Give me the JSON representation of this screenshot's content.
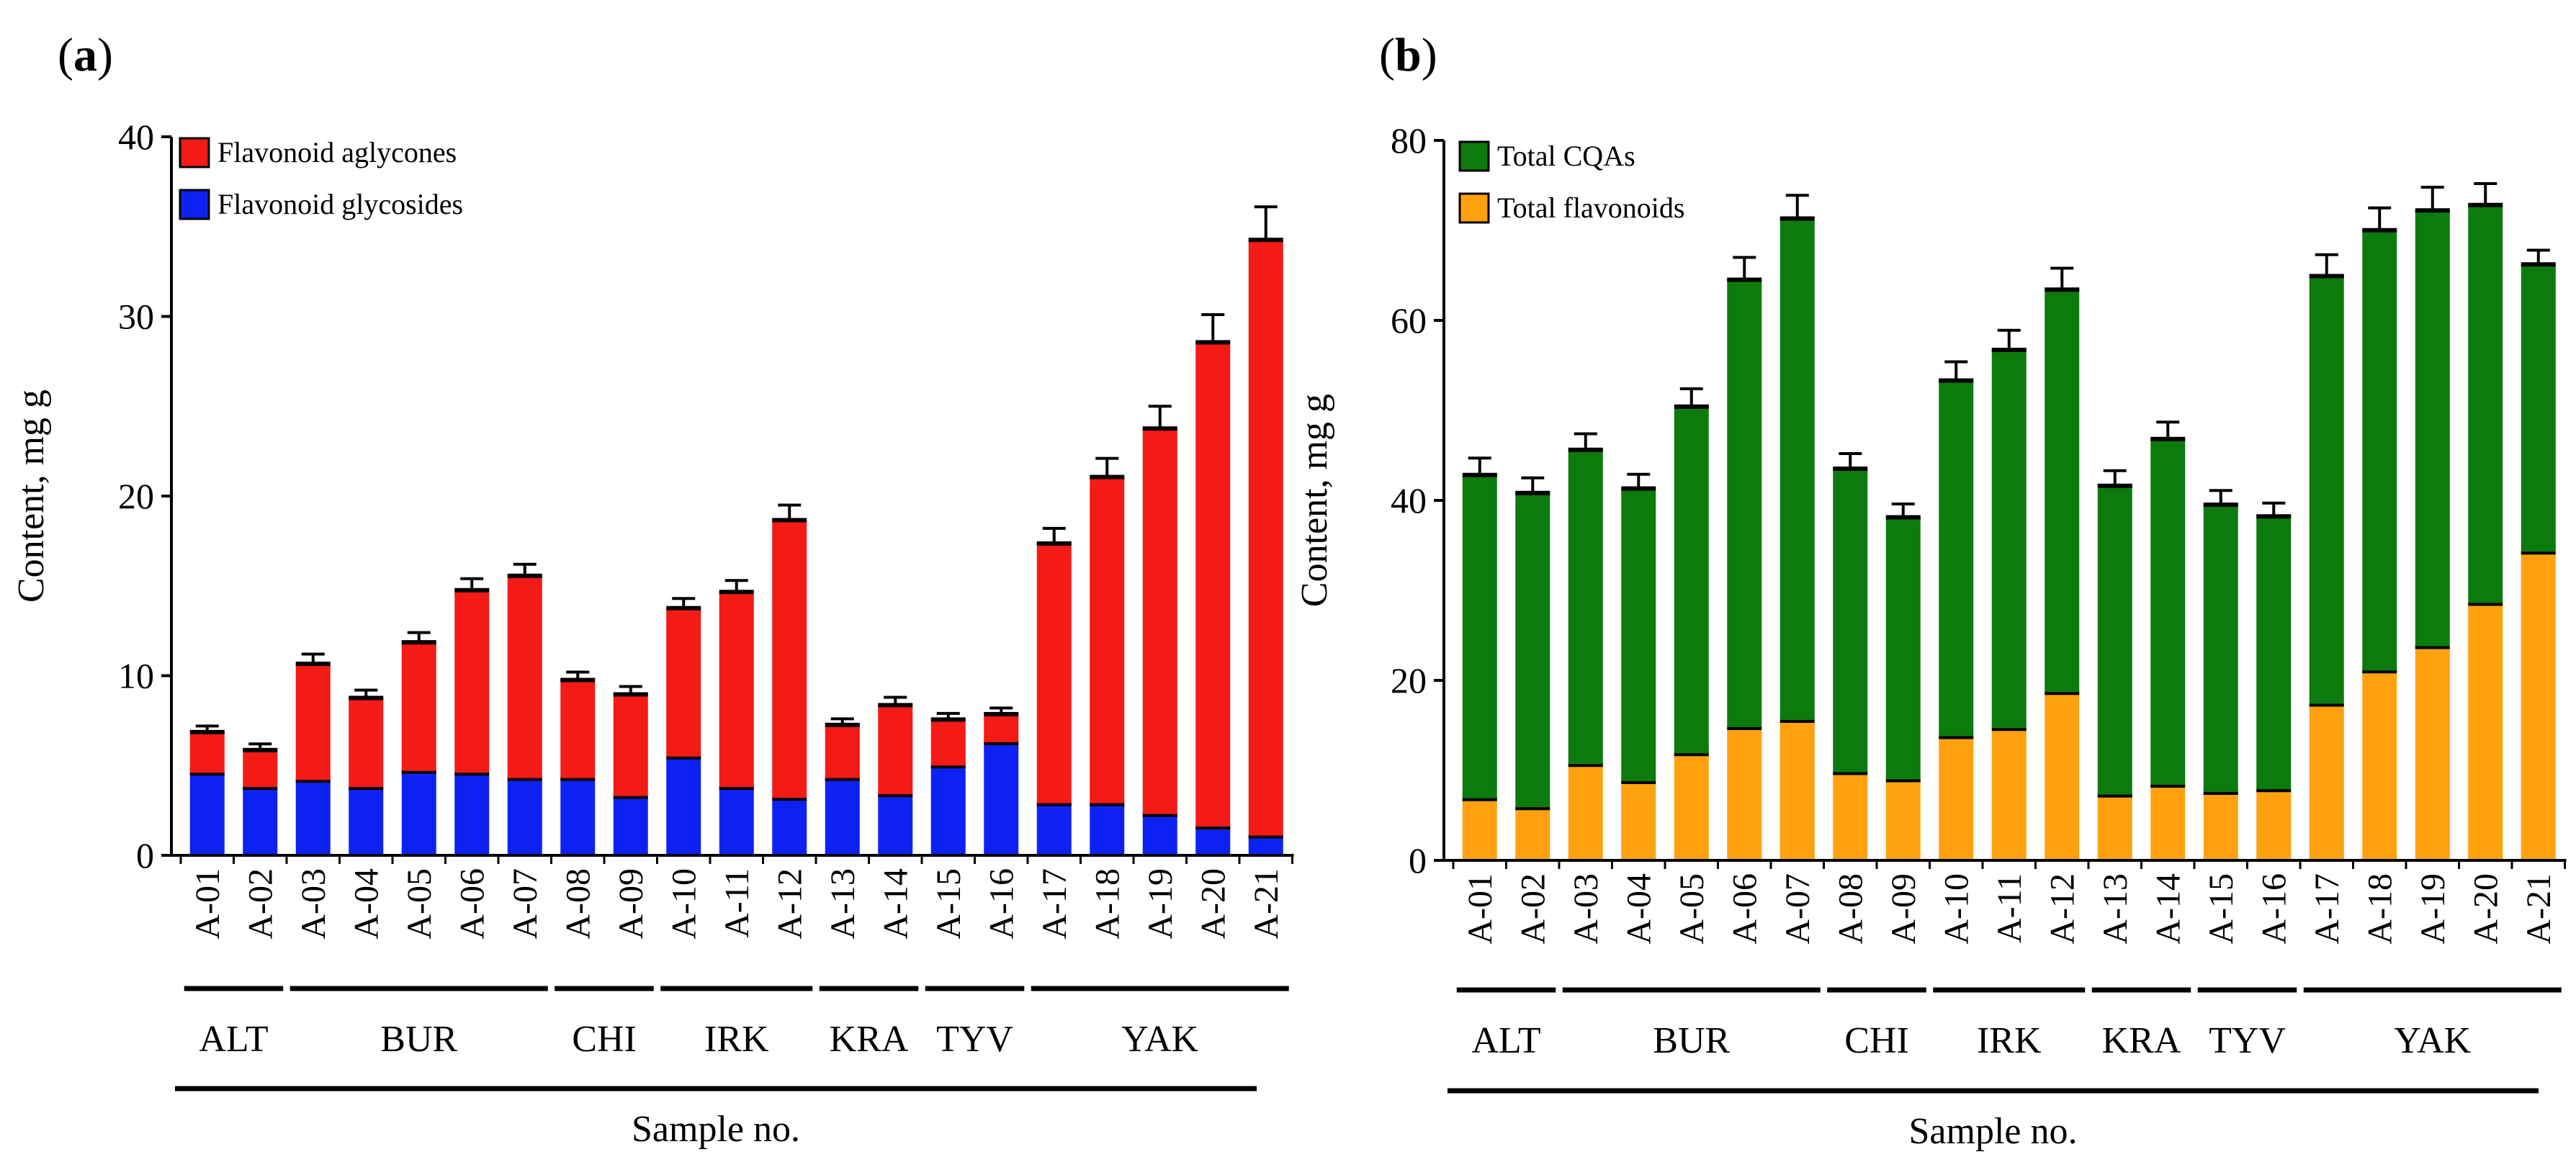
{
  "chart_data": [
    {
      "type": "bar",
      "stacked": true,
      "panel": "(a)",
      "panel_open": "(",
      "panel_letter": "a",
      "panel_close": ")",
      "title": "",
      "categories": [
        "A-01",
        "A-02",
        "A-03",
        "A-04",
        "A-05",
        "A-06",
        "A-07",
        "A-08",
        "A-09",
        "A-10",
        "A-11",
        "A-12",
        "A-13",
        "A-14",
        "A-15",
        "A-16",
        "A-17",
        "A-18",
        "A-19",
        "A-20",
        "A-21"
      ],
      "series": [
        {
          "name": "Flavonoid glycosides",
          "color": "#0d22f2",
          "values": [
            4.6,
            3.8,
            4.2,
            3.8,
            4.7,
            4.6,
            4.3,
            4.3,
            3.3,
            5.5,
            3.8,
            3.2,
            4.3,
            3.4,
            5.0,
            6.3,
            2.9,
            2.9,
            2.3,
            1.6,
            1.1
          ]
        },
        {
          "name": "Flavonoid aglycones",
          "color": "#f41a16",
          "values": [
            2.3,
            2.1,
            6.5,
            5.0,
            7.2,
            10.2,
            11.3,
            5.5,
            5.7,
            8.3,
            10.9,
            15.5,
            3.0,
            5.0,
            2.6,
            1.6,
            14.5,
            18.2,
            21.5,
            27.0,
            33.2
          ]
        }
      ],
      "errors": [
        0.3,
        0.3,
        0.5,
        0.4,
        0.5,
        0.6,
        0.6,
        0.4,
        0.4,
        0.5,
        0.6,
        0.8,
        0.3,
        0.4,
        0.3,
        0.3,
        0.8,
        1.0,
        1.2,
        1.5,
        1.8
      ],
      "legend_order": [
        "Flavonoid aglycones",
        "Flavonoid glycosides"
      ],
      "legend_position": "top-left",
      "xlabel": "Sample no.",
      "ylabel": "Content, mg g",
      "ylim": [
        0,
        40
      ],
      "yticks": [
        "0",
        "10",
        "20",
        "30",
        "40"
      ],
      "grid": false,
      "groups": [
        {
          "label": "ALT",
          "from": 0,
          "to": 1
        },
        {
          "label": "BUR",
          "from": 2,
          "to": 6
        },
        {
          "label": "CHI",
          "from": 7,
          "to": 8
        },
        {
          "label": "IRK",
          "from": 9,
          "to": 11
        },
        {
          "label": "KRA",
          "from": 12,
          "to": 13
        },
        {
          "label": "TYV",
          "from": 14,
          "to": 15
        },
        {
          "label": "YAK",
          "from": 16,
          "to": 20
        }
      ]
    },
    {
      "type": "bar",
      "stacked": true,
      "panel": "(b)",
      "panel_open": "(",
      "panel_letter": "b",
      "panel_close": ")",
      "title": "",
      "categories": [
        "A-01",
        "A-02",
        "A-03",
        "A-04",
        "A-05",
        "A-06",
        "A-07",
        "A-08",
        "A-09",
        "A-10",
        "A-11",
        "A-12",
        "A-13",
        "A-14",
        "A-15",
        "A-16",
        "A-17",
        "A-18",
        "A-19",
        "A-20",
        "A-21"
      ],
      "series": [
        {
          "name": "Total flavonoids",
          "color": "#ffa10f",
          "values": [
            6.9,
            5.9,
            10.7,
            8.8,
            11.9,
            14.8,
            15.6,
            9.8,
            9.0,
            13.8,
            14.7,
            18.7,
            7.3,
            8.4,
            7.6,
            7.9,
            17.4,
            21.1,
            23.8,
            28.6,
            34.3
          ]
        },
        {
          "name": "Total CQAs",
          "color": "#0d7a0d",
          "values": [
            36.0,
            35.0,
            35.0,
            32.6,
            38.6,
            49.8,
            55.8,
            33.8,
            29.2,
            39.6,
            42.1,
            44.8,
            34.4,
            38.5,
            32.0,
            30.4,
            47.6,
            49.0,
            48.5,
            44.3,
            32.0
          ]
        }
      ],
      "errors": [
        1.8,
        1.6,
        1.7,
        1.5,
        1.9,
        2.4,
        2.5,
        1.6,
        1.4,
        2.0,
        2.1,
        2.3,
        1.6,
        1.8,
        1.5,
        1.4,
        2.3,
        2.4,
        2.5,
        2.3,
        1.5
      ],
      "legend_order": [
        "Total CQAs",
        "Total flavonoids"
      ],
      "legend_position": "top-left",
      "xlabel": "Sample no.",
      "ylabel": "Content, mg g",
      "ylim": [
        0,
        80
      ],
      "yticks": [
        "0",
        "20",
        "40",
        "60",
        "80"
      ],
      "grid": false,
      "groups": [
        {
          "label": "ALT",
          "from": 0,
          "to": 1
        },
        {
          "label": "BUR",
          "from": 2,
          "to": 6
        },
        {
          "label": "CHI",
          "from": 7,
          "to": 8
        },
        {
          "label": "IRK",
          "from": 9,
          "to": 11
        },
        {
          "label": "KRA",
          "from": 12,
          "to": 13
        },
        {
          "label": "TYV",
          "from": 14,
          "to": 15
        },
        {
          "label": "YAK",
          "from": 16,
          "to": 20
        }
      ]
    }
  ]
}
